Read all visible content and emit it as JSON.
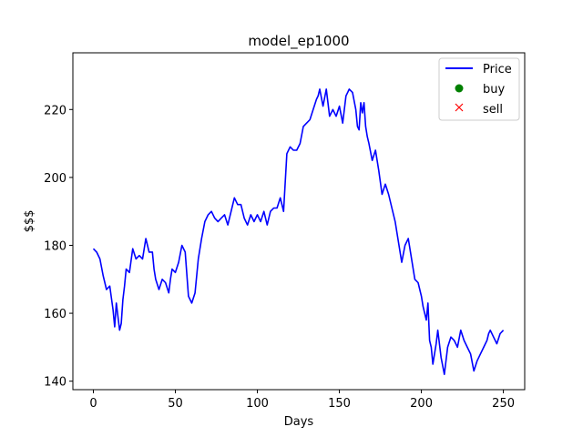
{
  "chart_data": {
    "type": "line",
    "title": "model_ep1000",
    "xlabel": "Days",
    "ylabel": "$$$",
    "xlim": [
      -12.5,
      263
    ],
    "ylim": [
      137.5,
      236.7
    ],
    "xticks": [
      0,
      50,
      100,
      150,
      200,
      250
    ],
    "yticks": [
      140,
      160,
      180,
      200,
      220
    ],
    "grid": false,
    "legend_position": "top-right",
    "colors": {
      "price": "#0000ff",
      "buy": "#008000",
      "sell": "#ff0000"
    },
    "legend": [
      {
        "label": "Price",
        "marker": "line",
        "color": "#0000ff"
      },
      {
        "label": "buy",
        "marker": "circle",
        "color": "#008000"
      },
      {
        "label": "sell",
        "marker": "x",
        "color": "#ff0000"
      }
    ],
    "series": [
      {
        "name": "Price",
        "x": [
          0,
          2,
          4,
          6,
          8,
          10,
          12,
          13,
          14,
          15,
          16,
          17,
          18,
          19,
          20,
          22,
          24,
          26,
          28,
          30,
          32,
          34,
          36,
          37,
          38,
          40,
          42,
          44,
          46,
          47,
          48,
          50,
          52,
          54,
          56,
          58,
          60,
          62,
          64,
          66,
          68,
          70,
          72,
          74,
          76,
          78,
          80,
          82,
          84,
          86,
          88,
          90,
          92,
          94,
          96,
          98,
          100,
          102,
          104,
          106,
          108,
          110,
          112,
          114,
          116,
          118,
          120,
          122,
          124,
          126,
          128,
          130,
          132,
          134,
          136,
          137,
          138,
          140,
          142,
          144,
          146,
          148,
          150,
          152,
          154,
          156,
          158,
          160,
          161,
          162,
          163,
          164,
          165,
          166,
          167,
          168,
          170,
          172,
          174,
          176,
          178,
          180,
          182,
          184,
          186,
          188,
          190,
          192,
          194,
          196,
          198,
          200,
          201,
          202,
          203,
          204,
          205,
          206,
          207,
          208,
          209,
          210,
          212,
          214,
          216,
          218,
          220,
          222,
          224,
          226,
          228,
          230,
          232,
          234,
          236,
          238,
          240,
          241,
          242,
          244,
          246,
          248,
          250
        ],
        "y": [
          179,
          178,
          176,
          171,
          167,
          168,
          161,
          156,
          163,
          159,
          155,
          157,
          164,
          168,
          173,
          172,
          179,
          176,
          177,
          176,
          182,
          178,
          178,
          173,
          170,
          167,
          170,
          169,
          166,
          170,
          173,
          172,
          175,
          180,
          178,
          165,
          163,
          166,
          176,
          182,
          187,
          189,
          190,
          188,
          187,
          188,
          189,
          186,
          190,
          194,
          192,
          192,
          188,
          186,
          189,
          187,
          189,
          187,
          190,
          186,
          190,
          191,
          191,
          194,
          190,
          207,
          209,
          208,
          208,
          210,
          215,
          216,
          217,
          220,
          223,
          224,
          226,
          221,
          226,
          218,
          220,
          218,
          221,
          216,
          224,
          226,
          225,
          220,
          215,
          214,
          222,
          219,
          222,
          215,
          212,
          210,
          205,
          208,
          202,
          195,
          198,
          195,
          191,
          187,
          181,
          175,
          180,
          182,
          176,
          170,
          169,
          165,
          162,
          160,
          158,
          163,
          152,
          150,
          145,
          148,
          151,
          155,
          147,
          142,
          150,
          153,
          152,
          150,
          155,
          152,
          150,
          148,
          143,
          146,
          148,
          150,
          152,
          154,
          155,
          153,
          151,
          154,
          155
        ],
        "color": "#0000ff"
      }
    ]
  }
}
